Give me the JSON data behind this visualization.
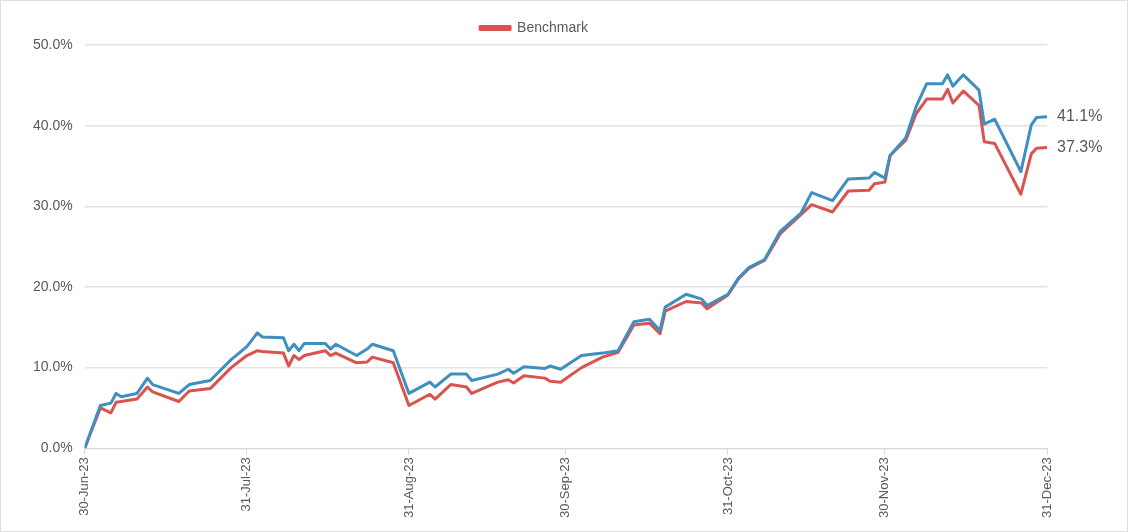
{
  "chart_data": {
    "type": "line",
    "x": [
      "2023-06-30",
      "2023-07-03",
      "2023-07-05",
      "2023-07-06",
      "2023-07-07",
      "2023-07-10",
      "2023-07-12",
      "2023-07-13",
      "2023-07-18",
      "2023-07-20",
      "2023-07-24",
      "2023-07-28",
      "2023-07-31",
      "2023-08-02",
      "2023-08-03",
      "2023-08-07",
      "2023-08-08",
      "2023-08-09",
      "2023-08-10",
      "2023-08-11",
      "2023-08-15",
      "2023-08-16",
      "2023-08-17",
      "2023-08-21",
      "2023-08-23",
      "2023-08-24",
      "2023-08-28",
      "2023-08-31",
      "2023-09-04",
      "2023-09-05",
      "2023-09-08",
      "2023-09-11",
      "2023-09-12",
      "2023-09-17",
      "2023-09-19",
      "2023-09-20",
      "2023-09-22",
      "2023-09-26",
      "2023-09-27",
      "2023-09-29",
      "2023-10-03",
      "2023-10-07",
      "2023-10-10",
      "2023-10-13",
      "2023-10-16",
      "2023-10-18",
      "2023-10-19",
      "2023-10-23",
      "2023-10-26",
      "2023-10-27",
      "2023-10-31",
      "2023-11-02",
      "2023-11-04",
      "2023-11-07",
      "2023-11-10",
      "2023-11-14",
      "2023-11-16",
      "2023-11-20",
      "2023-11-23",
      "2023-11-27",
      "2023-11-28",
      "2023-11-30",
      "2023-12-01",
      "2023-12-04",
      "2023-12-06",
      "2023-12-08",
      "2023-12-11",
      "2023-12-12",
      "2023-12-13",
      "2023-12-15",
      "2023-12-18",
      "2023-12-19",
      "2023-12-21",
      "2023-12-26",
      "2023-12-28",
      "2023-12-29",
      "2023-12-31"
    ],
    "series": [
      {
        "color": "#3f8fc0",
        "values": [
          0,
          5.3,
          5.6,
          6.8,
          6.4,
          6.8,
          8.7,
          7.9,
          6.8,
          7.9,
          8.4,
          11.0,
          12.6,
          14.3,
          13.8,
          13.7,
          12.1,
          12.9,
          12.1,
          13.0,
          13.0,
          12.3,
          12.9,
          11.5,
          12.3,
          12.9,
          12.1,
          6.8,
          8.2,
          7.6,
          9.2,
          9.2,
          8.4,
          9.2,
          9.8,
          9.3,
          10.1,
          9.9,
          10.2,
          9.8,
          11.5,
          11.8,
          12.1,
          15.7,
          16.0,
          14.6,
          17.5,
          19.1,
          18.5,
          17.7,
          19.1,
          21.1,
          22.4,
          23.4,
          26.9,
          29.2,
          31.7,
          30.7,
          33.4,
          33.5,
          34.2,
          33.5,
          36.3,
          38.5,
          42.4,
          45.2,
          45.2,
          46.3,
          44.9,
          46.3,
          44.4,
          40.2,
          40.8,
          34.3,
          40.1,
          41.0,
          41.1
        ],
        "value_labels": [
          null,
          null,
          null,
          null,
          null,
          null,
          null,
          null,
          null,
          null,
          null,
          null,
          null,
          null,
          null,
          null,
          null,
          null,
          null,
          null,
          null,
          null,
          null,
          null,
          null,
          null,
          null,
          null,
          null,
          null,
          null,
          null,
          null,
          null,
          null,
          null,
          null,
          null,
          null,
          null,
          null,
          null,
          null,
          null,
          null,
          null,
          null,
          null,
          null,
          null,
          null,
          null,
          null,
          null,
          null,
          null,
          null,
          null,
          null,
          null,
          null,
          null,
          null,
          null,
          null,
          null,
          null,
          null,
          null,
          null,
          null,
          null,
          null,
          null,
          null,
          null,
          "41.1%"
        ]
      },
      {
        "name": "Benchmark",
        "color": "#d9534f",
        "values": [
          0,
          5.0,
          4.4,
          5.7,
          5.8,
          6.1,
          7.6,
          7.0,
          5.8,
          7.1,
          7.4,
          10.0,
          11.5,
          12.1,
          12.0,
          11.8,
          10.2,
          11.5,
          11.0,
          11.5,
          12.1,
          11.5,
          11.8,
          10.6,
          10.7,
          11.3,
          10.6,
          5.3,
          6.7,
          6.1,
          7.9,
          7.6,
          6.8,
          8.2,
          8.5,
          8.1,
          9.0,
          8.7,
          8.3,
          8.2,
          10.0,
          11.3,
          11.9,
          15.3,
          15.5,
          14.2,
          17.0,
          18.2,
          18.0,
          17.3,
          19.0,
          21.0,
          22.3,
          23.3,
          26.6,
          29.0,
          30.2,
          29.3,
          31.9,
          32.0,
          32.8,
          33.0,
          36.3,
          38.2,
          41.5,
          43.3,
          43.3,
          44.5,
          42.8,
          44.3,
          42.5,
          38.0,
          37.8,
          31.5,
          36.5,
          37.2,
          37.3
        ],
        "value_labels": [
          null,
          null,
          null,
          null,
          null,
          null,
          null,
          null,
          null,
          null,
          null,
          null,
          null,
          null,
          null,
          null,
          null,
          null,
          null,
          null,
          null,
          null,
          null,
          null,
          null,
          null,
          null,
          null,
          null,
          null,
          null,
          null,
          null,
          null,
          null,
          null,
          null,
          null,
          null,
          null,
          null,
          null,
          null,
          null,
          null,
          null,
          null,
          null,
          null,
          null,
          null,
          null,
          null,
          null,
          null,
          null,
          null,
          null,
          null,
          null,
          null,
          null,
          null,
          null,
          null,
          null,
          null,
          null,
          null,
          null,
          null,
          null,
          null,
          null,
          null,
          null,
          "37.3%"
        ]
      }
    ],
    "xlim": [
      "2023-06-30",
      "2023-12-31"
    ],
    "xticks": [
      {
        "value": "2023-06-30",
        "label": "30-Jun-23"
      },
      {
        "value": "2023-07-31",
        "label": "31-Jul-23"
      },
      {
        "value": "2023-08-31",
        "label": "31-Aug-23"
      },
      {
        "value": "2023-09-30",
        "label": "30-Sep-23"
      },
      {
        "value": "2023-10-31",
        "label": "31-Oct-23"
      },
      {
        "value": "2023-11-30",
        "label": "30-Nov-23"
      },
      {
        "value": "2023-12-31",
        "label": "31-Dec-23"
      }
    ],
    "ylim": [
      0,
      50
    ],
    "yticks": [
      {
        "value": 0,
        "label": "0.0%"
      },
      {
        "value": 10,
        "label": "10.0%"
      },
      {
        "value": 20,
        "label": "20.0%"
      },
      {
        "value": 30,
        "label": "30.0%"
      },
      {
        "value": 40,
        "label": "40.0%"
      },
      {
        "value": 50,
        "label": "50.0%"
      }
    ],
    "grid": "y",
    "legend": "top",
    "marker": "none",
    "line_style": "solid"
  }
}
